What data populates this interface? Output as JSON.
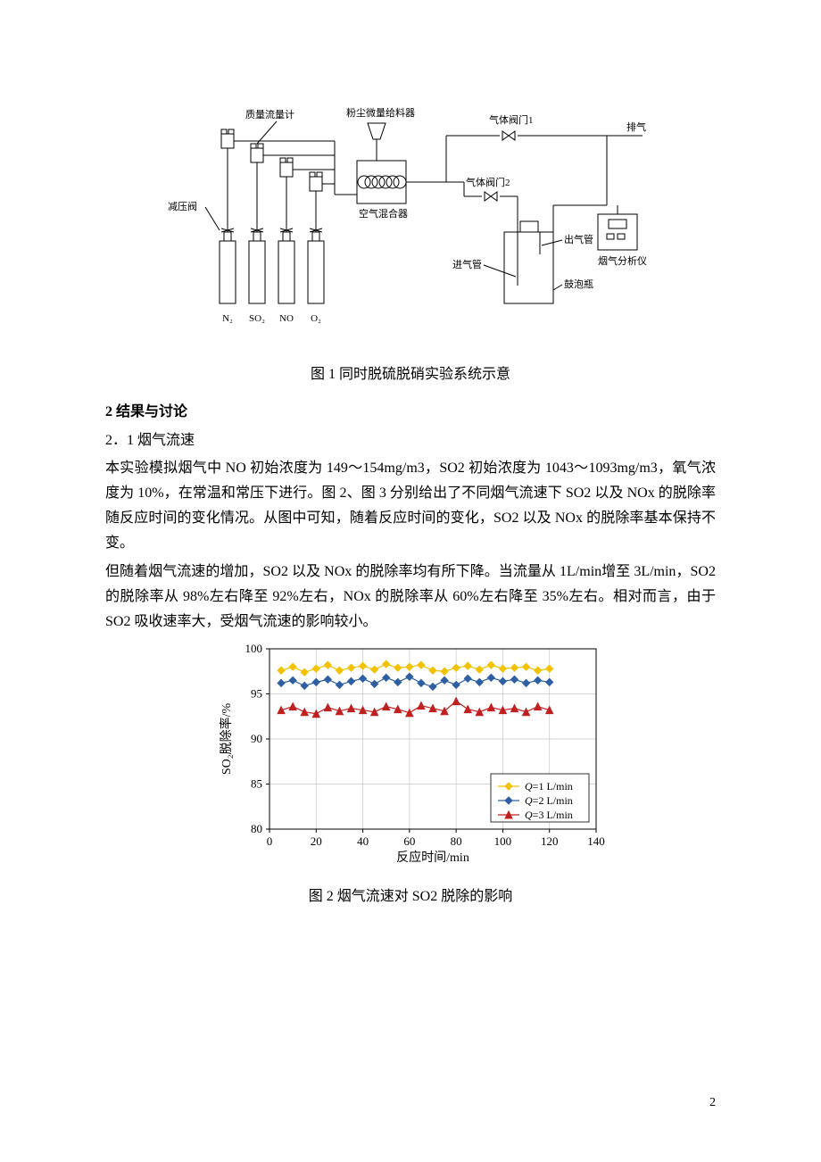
{
  "page_number": "2",
  "diagram1": {
    "caption": "图 1 同时脱硫脱硝实验系统示意",
    "labels": {
      "reducer": "减压阀",
      "mass_flow_meter": "质量流量计",
      "dust_feeder": "粉尘微量给料器",
      "air_mixer": "空气混合器",
      "gas_valve1": "气体阀门1",
      "gas_valve2": "气体阀门2",
      "exhaust": "排气",
      "analyzer": "烟气分析仪",
      "inlet_tube": "进气管",
      "outlet_tube": "出气管",
      "bubbler": "鼓泡瓶",
      "n2": "N₂",
      "so2": "SO₂",
      "no": "NO",
      "o2": "O₂"
    },
    "line_color": "#000000",
    "line_width": 1
  },
  "section2_heading": "2 结果与讨论",
  "section21_heading": "2．1 烟气流速",
  "para1": "本实验模拟烟气中 NO 初始浓度为 149～154mg/m3，SO2 初始浓度为 1043～1093mg/m3，氧气浓度为 10%，在常温和常压下进行。图 2、图 3 分别给出了不同烟气流速下 SO2 以及 NOx 的脱除率随反应时间的变化情况。从图中可知，随着反应时间的变化，SO2 以及 NOx 的脱除率基本保持不变。",
  "para2": "但随着烟气流速的增加，SO2 以及 NOx 的脱除率均有所下降。当流量从 1L/min增至 3L/min，SO2 的脱除率从 98%左右降至 92%左右，NOx 的脱除率从 60%左右降至 35%左右。相对而言，由于 SO2 吸收速率大，受烟气流速的影响较小。",
  "chart1": {
    "type": "line",
    "caption": "图 2 烟气流速对 SO2 脱除的影响",
    "xlabel": "反应时间/min",
    "ylabel": "SO₂脱除率/%",
    "xlim": [
      0,
      140
    ],
    "ylim": [
      80,
      100
    ],
    "xticks": [
      0,
      20,
      40,
      60,
      80,
      100,
      120,
      140
    ],
    "yticks": [
      80,
      85,
      90,
      95,
      100
    ],
    "grid_color": "#c8c8c8",
    "axis_color": "#000000",
    "axis_fontsize": 14,
    "tick_fontsize": 13,
    "background_color": "#ffffff",
    "series": [
      {
        "label": "Q=1 L/min",
        "color": "#f2c200",
        "marker": "diamond",
        "marker_size": 4,
        "line_width": 1.2,
        "x": [
          5,
          10,
          15,
          20,
          25,
          30,
          35,
          40,
          45,
          50,
          55,
          60,
          65,
          70,
          75,
          80,
          85,
          90,
          95,
          100,
          105,
          110,
          115,
          120
        ],
        "y": [
          97.6,
          98.0,
          97.4,
          97.8,
          98.2,
          97.6,
          97.9,
          98.1,
          97.7,
          98.3,
          97.9,
          98.0,
          98.2,
          97.6,
          97.5,
          97.9,
          98.1,
          97.7,
          98.2,
          97.8,
          97.9,
          98.0,
          97.6,
          97.8
        ]
      },
      {
        "label": "Q=2 L/min",
        "color": "#2e5fa3",
        "marker": "diamond",
        "marker_size": 4,
        "line_width": 1.2,
        "x": [
          5,
          10,
          15,
          20,
          25,
          30,
          35,
          40,
          45,
          50,
          55,
          60,
          65,
          70,
          75,
          80,
          85,
          90,
          95,
          100,
          105,
          110,
          115,
          120
        ],
        "y": [
          96.2,
          96.5,
          95.9,
          96.3,
          96.6,
          96.0,
          96.4,
          96.7,
          96.1,
          96.8,
          96.3,
          96.9,
          96.2,
          95.8,
          96.5,
          96.0,
          96.7,
          96.3,
          96.8,
          96.4,
          96.6,
          96.2,
          96.5,
          96.3
        ]
      },
      {
        "label": "Q=3 L/min",
        "color": "#c02020",
        "marker": "triangle",
        "marker_size": 4,
        "line_width": 1.2,
        "x": [
          5,
          10,
          15,
          20,
          25,
          30,
          35,
          40,
          45,
          50,
          55,
          60,
          65,
          70,
          75,
          80,
          85,
          90,
          95,
          100,
          105,
          110,
          115,
          120
        ],
        "y": [
          93.2,
          93.6,
          93.0,
          92.8,
          93.5,
          93.1,
          93.4,
          93.2,
          93.0,
          93.6,
          93.3,
          92.9,
          93.7,
          93.4,
          93.1,
          94.2,
          93.3,
          93.0,
          93.5,
          93.2,
          93.4,
          93.0,
          93.6,
          93.2
        ]
      }
    ],
    "legend_position": "inside-bottom-right"
  }
}
